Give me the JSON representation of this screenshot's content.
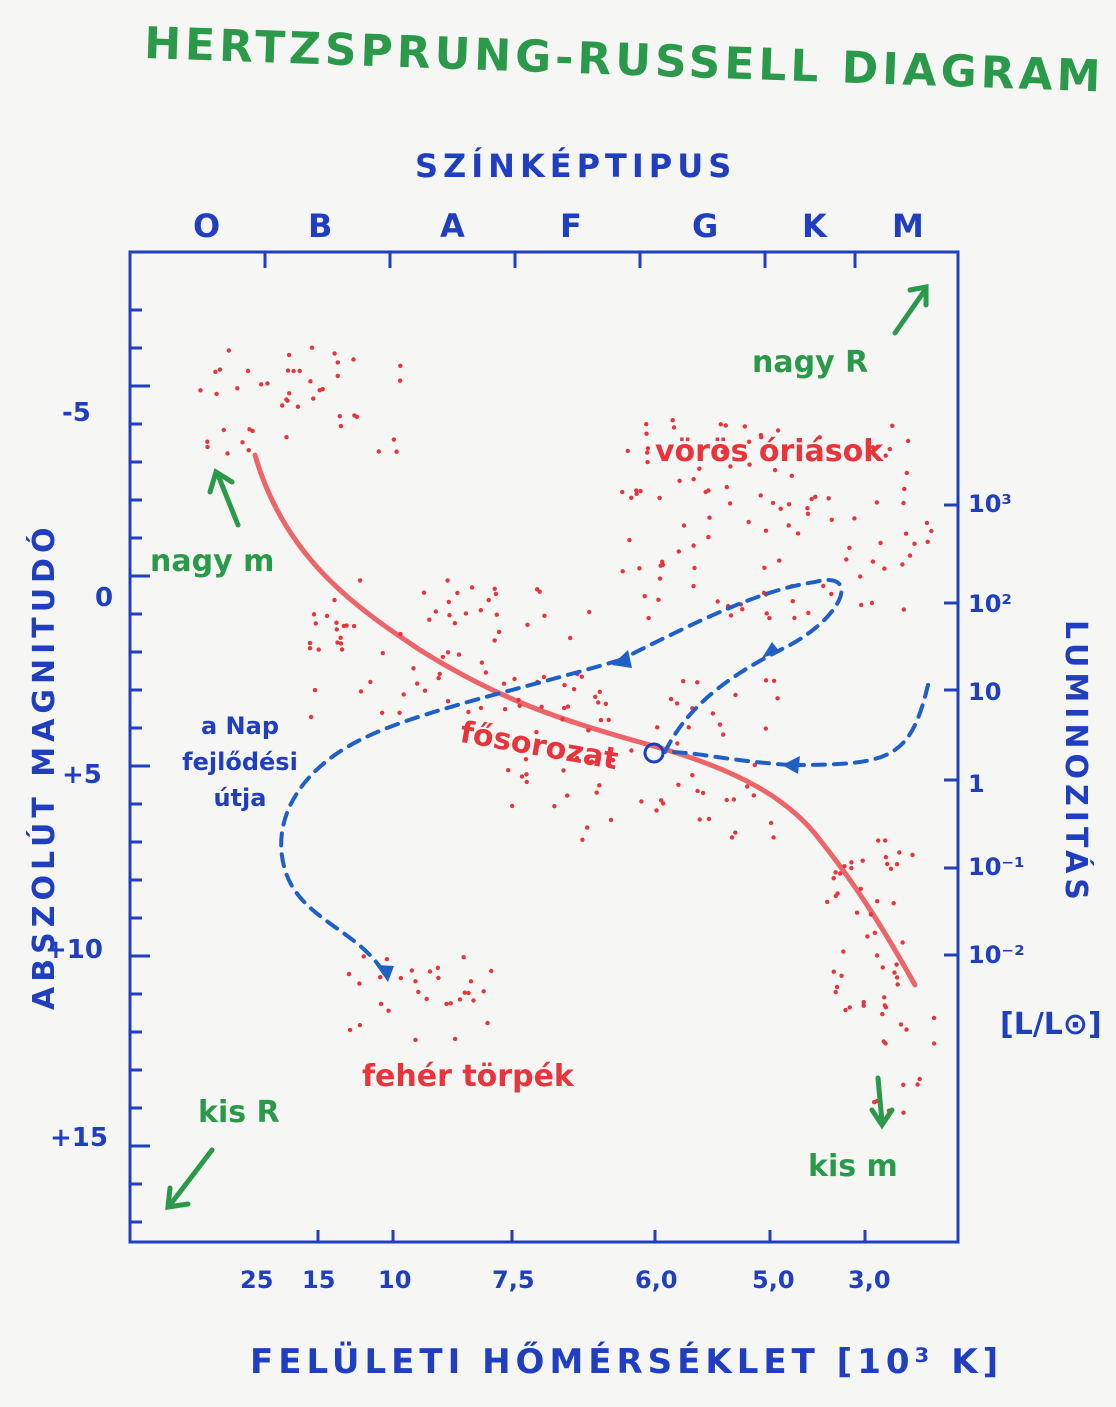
{
  "title": "HERTZSPRUNG-RUSSELL DIAGRAM",
  "top_axis_title": "SZÍNKÉPTIPUS",
  "bottom_axis_title": "FELÜLETI HŐMÉRSÉKLET [10³ K]",
  "left_axis_title": "ABSZOLÚT MAGNITUDÓ",
  "right_axis_title": "LUMINOZITÁS",
  "right_axis_unit": "[L/L⊙]",
  "spectral_classes": [
    "O",
    "B",
    "A",
    "F",
    "G",
    "K",
    "M"
  ],
  "magnitude_ticks": [
    "-5",
    "0",
    "+5",
    "+10",
    "+15"
  ],
  "temperature_ticks": [
    "25",
    "15",
    "10",
    "7,5",
    "6,0",
    "5,0",
    "3,0"
  ],
  "luminosity_ticks": [
    "10³",
    "10²",
    "10",
    "1",
    "10⁻¹",
    "10⁻²"
  ],
  "annotations": {
    "nagy_r": "nagy R",
    "nagy_m": "nagy m",
    "kis_r": "kis R",
    "kis_m": "kis m",
    "red_giants": "vörös óriások",
    "main_sequence": "fősorozat",
    "white_dwarfs": "fehér törpék",
    "sun_path": [
      "a Nap",
      "fejlődési",
      "útja"
    ]
  },
  "colors": {
    "axes": "#1f3fc0",
    "stars": "#e8343a",
    "annotation": "#2a9a4a",
    "sun_path": "#1f5fc8"
  }
}
